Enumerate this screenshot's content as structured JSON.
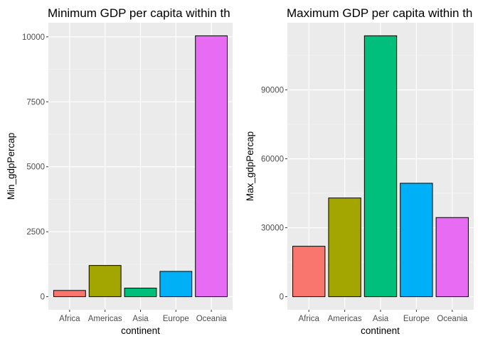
{
  "chart_data": [
    {
      "type": "bar",
      "title": "Minimum GDP per capita within th",
      "xlabel": "continent",
      "ylabel": "Min_gdpPercap",
      "categories": [
        "Africa",
        "Americas",
        "Asia",
        "Europe",
        "Oceania"
      ],
      "values": [
        241,
        1202,
        331,
        974,
        10040
      ],
      "colors": [
        "#F8766D",
        "#A3A500",
        "#00BF7D",
        "#00B0F6",
        "#E76BF3"
      ],
      "yticks": [
        0,
        2500,
        5000,
        7500,
        10000
      ],
      "ytick_labels": [
        "0",
        "2500",
        "5000",
        "7500",
        "10000"
      ],
      "ylim": [
        -502,
        10543
      ],
      "grid": true,
      "legend": "none"
    },
    {
      "type": "bar",
      "title": "Maximum GDP per capita within th",
      "xlabel": "continent",
      "ylabel": "Max_gdpPercap",
      "categories": [
        "Africa",
        "Americas",
        "Asia",
        "Europe",
        "Oceania"
      ],
      "values": [
        21951,
        42952,
        113523,
        49357,
        34435
      ],
      "colors": [
        "#F8766D",
        "#A3A500",
        "#00BF7D",
        "#00B0F6",
        "#E76BF3"
      ],
      "yticks": [
        0,
        30000,
        60000,
        90000
      ],
      "ytick_labels": [
        "0",
        "30000",
        "60000",
        "90000"
      ],
      "ylim": [
        -5676,
        119199
      ],
      "grid": true,
      "legend": "none"
    }
  ]
}
